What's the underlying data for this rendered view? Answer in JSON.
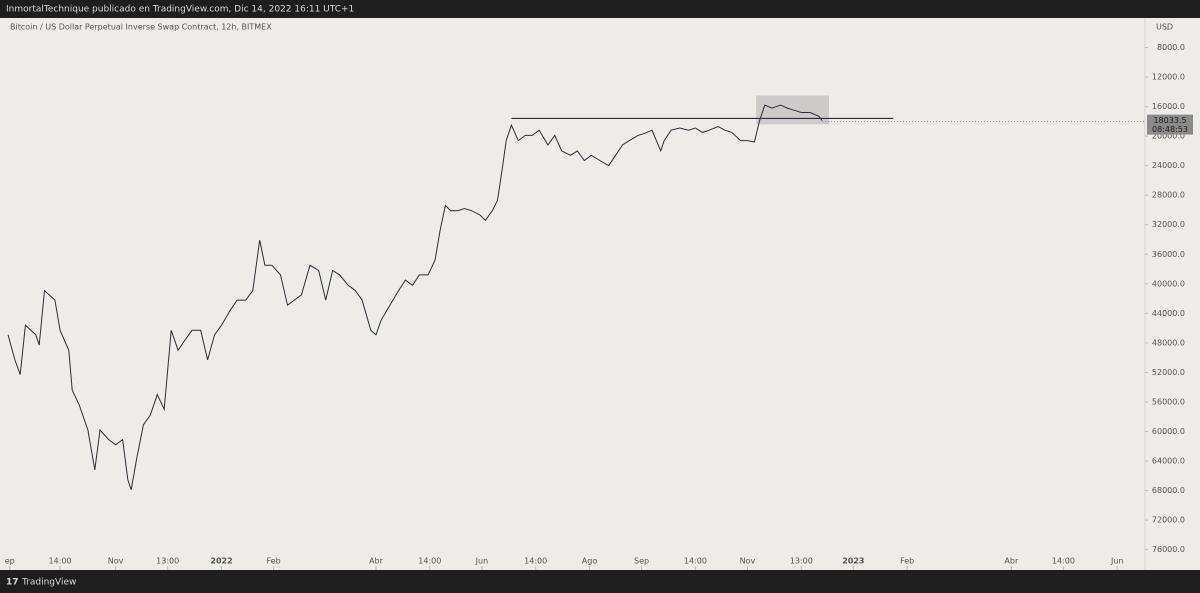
{
  "header": "InmortalTechnique publicado en TradingView.com, Dic 14, 2022 16:11 UTC+1",
  "footer": "TradingView",
  "chart_data": {
    "type": "line",
    "title": "Bitcoin / US Dollar Perpetual Inverse Swap Contract, 12h, BITMEX",
    "y_unit": "USD",
    "inverted": true,
    "color": "#2a2e39",
    "x": [
      0,
      4,
      7,
      10,
      16,
      18,
      21,
      27,
      30,
      35,
      37,
      41,
      46,
      50,
      53,
      58,
      62,
      66,
      69,
      71,
      74,
      78,
      82,
      86,
      90,
      94,
      98,
      102,
      106,
      111,
      115,
      119,
      123,
      128,
      132,
      137,
      141,
      145,
      148,
      152,
      157,
      161,
      165,
      169,
      174,
      179,
      183,
      187,
      191,
      196,
      200,
      204,
      209,
      212,
      215,
      220,
      225,
      229,
      233,
      237,
      242,
      246,
      249,
      252,
      255,
      259,
      263,
      267,
      272,
      275,
      279,
      282,
      285,
      287,
      290,
      294,
      298,
      302,
      306,
      311,
      315,
      319,
      324,
      328,
      332,
      336,
      341,
      346,
      350,
      354,
      358,
      363,
      367,
      371,
      376,
      378,
      382,
      387,
      392,
      396,
      400,
      404,
      409,
      413,
      417,
      422,
      426,
      430,
      433,
      436,
      440,
      445,
      449,
      453,
      457,
      462,
      467,
      469
    ],
    "series": [
      {
        "name": "Bitcoin",
        "values": [
          46900,
          50300,
          52300,
          45600,
          46900,
          48300,
          40900,
          42200,
          46300,
          49000,
          54400,
          56400,
          59800,
          65200,
          59800,
          61100,
          61800,
          61100,
          66500,
          67900,
          63800,
          59100,
          57800,
          55000,
          57000,
          46300,
          49000,
          47600,
          46300,
          46300,
          50300,
          46900,
          45600,
          43600,
          42200,
          42200,
          40900,
          34100,
          37500,
          37500,
          38800,
          42900,
          42200,
          41500,
          37500,
          38200,
          42200,
          38200,
          38800,
          40200,
          40900,
          42200,
          46300,
          46900,
          44900,
          42900,
          40900,
          39500,
          40200,
          38800,
          38800,
          36800,
          32700,
          29400,
          30100,
          30100,
          29800,
          30100,
          30700,
          31400,
          30100,
          28700,
          24000,
          20600,
          18500,
          20600,
          19900,
          19900,
          19200,
          21200,
          19900,
          22000,
          22600,
          22000,
          23300,
          22600,
          23300,
          24000,
          22600,
          21200,
          20600,
          19900,
          19600,
          19200,
          22000,
          20600,
          19200,
          18900,
          19200,
          18900,
          19500,
          19200,
          18700,
          19200,
          19500,
          20600,
          20600,
          20800,
          17900,
          15800,
          16200,
          15800,
          16200,
          16500,
          16800,
          16800,
          17300,
          17900
        ]
      }
    ],
    "xlim": [
      0,
      655
    ],
    "ylim": [
      4000,
      77000
    ],
    "xticks": [
      {
        "value": 1,
        "label": "ep"
      },
      {
        "value": 30,
        "label": "14:00"
      },
      {
        "value": 62,
        "label": "Nov"
      },
      {
        "value": 92,
        "label": "13:00"
      },
      {
        "value": 123,
        "label": "2022"
      },
      {
        "value": 153,
        "label": "Feb"
      },
      {
        "value": 212,
        "label": "Abr"
      },
      {
        "value": 243,
        "label": "14:00"
      },
      {
        "value": 273,
        "label": "Jun"
      },
      {
        "value": 304,
        "label": "14:00"
      },
      {
        "value": 335,
        "label": "Ago"
      },
      {
        "value": 365,
        "label": "Sep"
      },
      {
        "value": 396,
        "label": "14:00"
      },
      {
        "value": 426,
        "label": "Nov"
      },
      {
        "value": 457,
        "label": "13:00"
      },
      {
        "value": 487,
        "label": "2023"
      },
      {
        "value": 518,
        "label": "Feb"
      },
      {
        "value": 578,
        "label": "Abr"
      },
      {
        "value": 608,
        "label": "14:00"
      },
      {
        "value": 639,
        "label": "Jun"
      }
    ],
    "yticks": [
      {
        "value": 8000,
        "label": "8000.0"
      },
      {
        "value": 12000,
        "label": "12000.0"
      },
      {
        "value": 16000,
        "label": "16000.0"
      },
      {
        "value": 20000,
        "label": "20000.0"
      },
      {
        "value": 24000,
        "label": "24000.0"
      },
      {
        "value": 28000,
        "label": "28000.0"
      },
      {
        "value": 32000,
        "label": "32000.0"
      },
      {
        "value": 36000,
        "label": "36000.0"
      },
      {
        "value": 40000,
        "label": "40000.0"
      },
      {
        "value": 44000,
        "label": "44000.0"
      },
      {
        "value": 48000,
        "label": "48000.0"
      },
      {
        "value": 52000,
        "label": "52000.0"
      },
      {
        "value": 56000,
        "label": "56000.0"
      },
      {
        "value": 60000,
        "label": "60000.0"
      },
      {
        "value": 64000,
        "label": "64000.0"
      },
      {
        "value": 68000,
        "label": "68000.0"
      },
      {
        "value": 72000,
        "label": "72000.0"
      },
      {
        "value": 76000,
        "label": "76000.0"
      }
    ],
    "last_price": {
      "value": 18033.5,
      "countdown": "08:48:53"
    },
    "level_line": {
      "value": 17600,
      "x": [
        290,
        510
      ]
    },
    "highlight_box": {
      "x": [
        431,
        473
      ],
      "y": [
        14500,
        18400
      ]
    }
  }
}
